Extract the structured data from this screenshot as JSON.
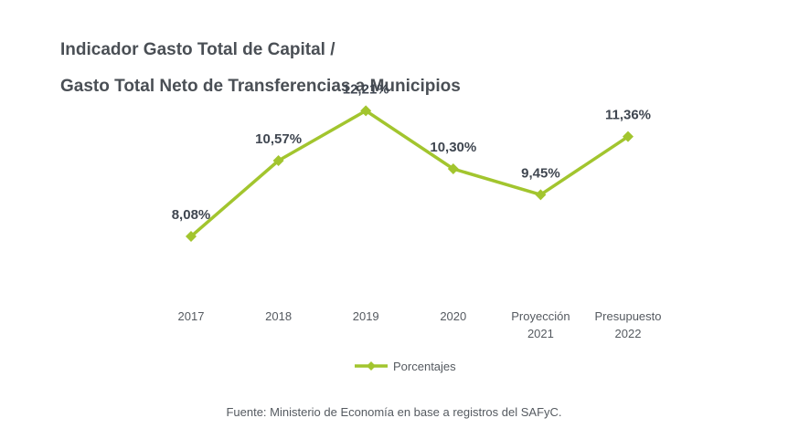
{
  "chart_data": {
    "type": "line",
    "title_lines": [
      "Indicador Gasto Total de Capital /",
      "Gasto Total Neto de Transferencias a Municipios"
    ],
    "categories": [
      [
        "2017"
      ],
      [
        "2018"
      ],
      [
        "2019"
      ],
      [
        "2020"
      ],
      [
        "Proyección",
        "2021"
      ],
      [
        "Presupuesto",
        "2022"
      ]
    ],
    "series": [
      {
        "name": "Porcentajes",
        "values": [
          8.08,
          10.57,
          12.21,
          10.3,
          9.45,
          11.36
        ],
        "labels": [
          "8,08%",
          "10,57%",
          "12,21%",
          "10,30%",
          "9,45%",
          "11,36%"
        ],
        "color": "#a2c52e"
      }
    ],
    "ylim": [
      4,
      13
    ],
    "grid": false,
    "legend_position": "bottom",
    "xlabel": "",
    "ylabel": ""
  },
  "source": "Fuente: Ministerio de Economía en base a registros del SAFyC.",
  "colors": {
    "title": "#4a4f55",
    "data_label": "#3f4650",
    "axis_label": "#555a60",
    "line": "#a2c52e"
  }
}
